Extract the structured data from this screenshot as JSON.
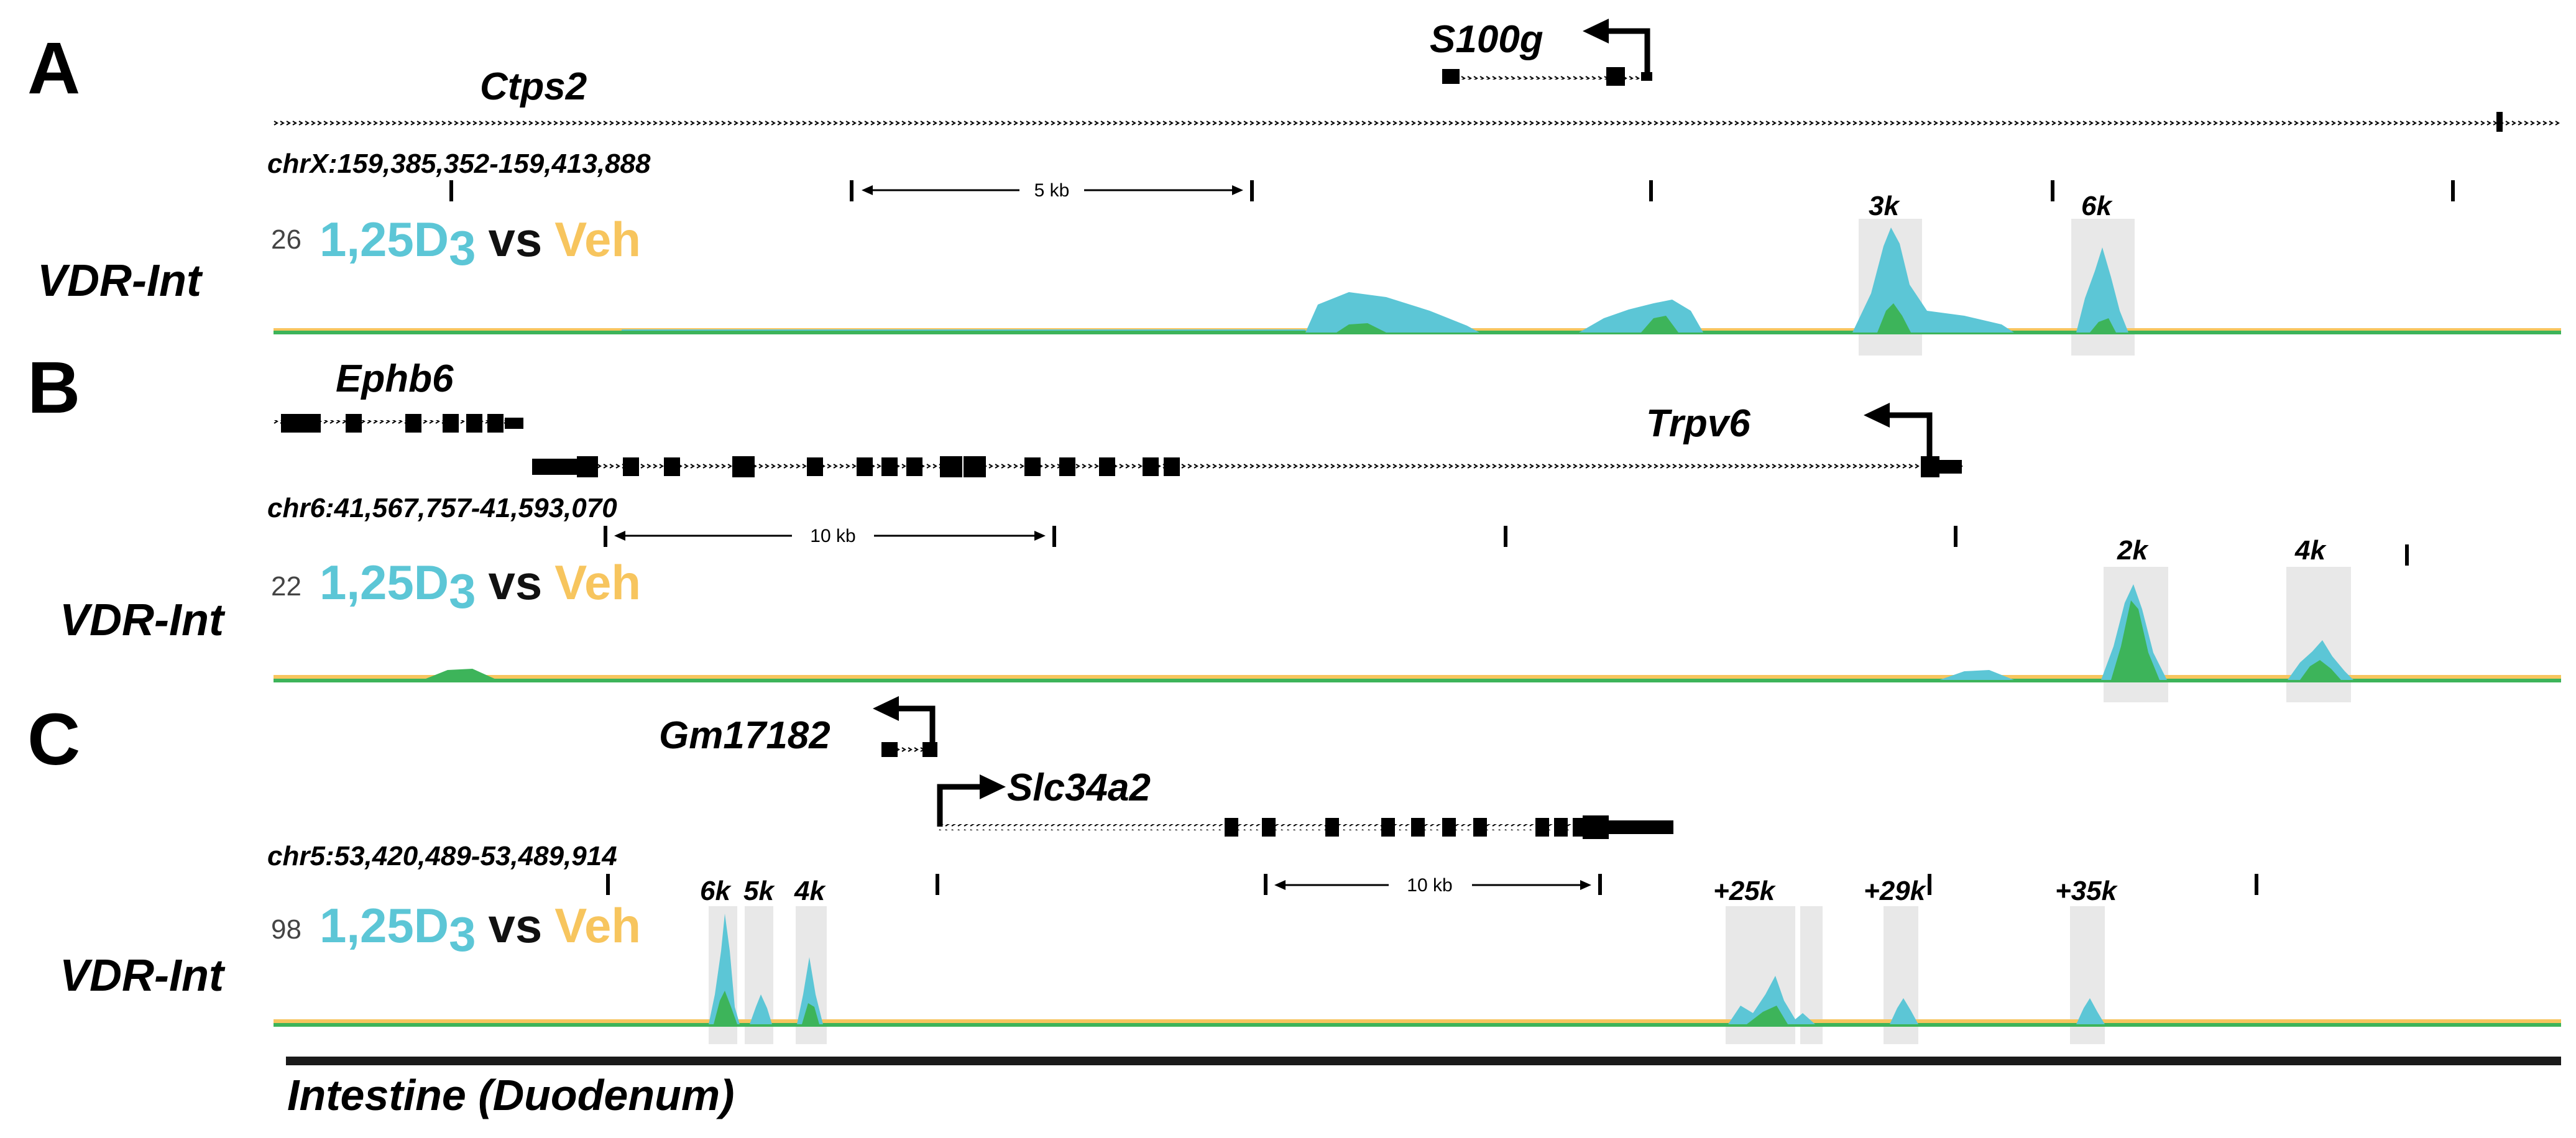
{
  "colors": {
    "treated": "#5cc6d6",
    "vehicle": "#f7c55e",
    "overlap": "#3db45a",
    "highlight": "#e8e8e8",
    "ink": "#000000"
  },
  "panels": [
    {
      "label": "A",
      "genes": [
        "S100g",
        "Ctps2"
      ],
      "coordinates": "chrX:159,385,352-159,413,888",
      "scale_bar": "5 kb",
      "track_scale": "26",
      "track_label": "VDR-Int",
      "condition_prefix": "1,25D",
      "condition_sub": "3",
      "vs": "vs",
      "control": "Veh",
      "peaks": [
        "3k",
        "6k"
      ]
    },
    {
      "label": "B",
      "genes": [
        "Ephb6",
        "Trpv6"
      ],
      "coordinates": "chr6:41,567,757-41,593,070",
      "scale_bar": "10 kb",
      "track_scale": "22",
      "track_label": "VDR-Int",
      "condition_prefix": "1,25D",
      "condition_sub": "3",
      "vs": "vs",
      "control": "Veh",
      "peaks": [
        "2k",
        "4k"
      ]
    },
    {
      "label": "C",
      "genes": [
        "Gm17182",
        "Slc34a2"
      ],
      "coordinates": "chr5:53,420,489-53,489,914",
      "scale_bar": "10 kb",
      "track_scale": "98",
      "track_label": "VDR-Int",
      "condition_prefix": "1,25D",
      "condition_sub": "3",
      "vs": "vs",
      "control": "Veh",
      "peaks": [
        "6k",
        "5k",
        "4k",
        "+25k",
        "+29k",
        "+35k"
      ]
    }
  ],
  "tissue": "Intestine (Duodenum)"
}
